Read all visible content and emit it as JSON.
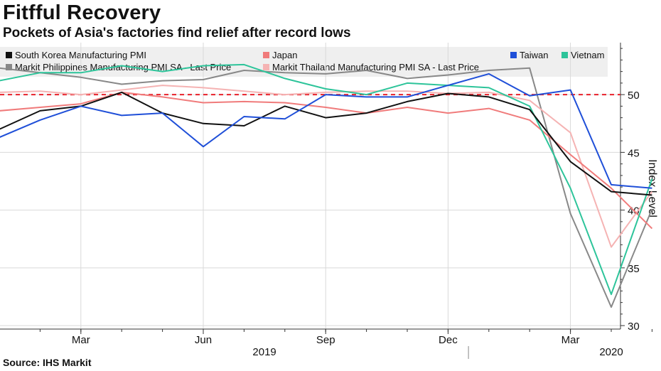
{
  "header": {
    "title": "Fitfful Recovery",
    "subtitle": "Pockets of Asia's factories find relief after record lows"
  },
  "source": "Source: IHS Markit",
  "legend": [
    {
      "label": "South Korea Manufacturing PMI",
      "color": "#111111"
    },
    {
      "label": "Markit Philippines Manufacturing PMI SA - Last Price",
      "color": "#888888"
    },
    {
      "label": "Japan",
      "color": "#f07b7b"
    },
    {
      "label": "Markit Thailand Manufacturing PMI SA - Last Price",
      "color": "#f5b3b3"
    },
    {
      "label": "Taiwan",
      "color": "#1f4fd8"
    },
    {
      "label": "Vietnam",
      "color": "#2dc49a"
    }
  ],
  "chart_data": {
    "type": "line",
    "title": "Fitfful Recovery",
    "subtitle": "Pockets of Asia's factories find relief after record lows",
    "xlabel": "",
    "ylabel": "Index Level",
    "ylim": [
      29.7,
      54.5
    ],
    "yticks": [
      30,
      35,
      40,
      45,
      50
    ],
    "reference_line": {
      "value": 50,
      "color": "#e8202a",
      "style": "dashed"
    },
    "x": [
      "2019-01",
      "2019-02",
      "2019-03",
      "2019-04",
      "2019-05",
      "2019-06",
      "2019-07",
      "2019-08",
      "2019-09",
      "2019-10",
      "2019-11",
      "2019-12",
      "2020-01",
      "2020-02",
      "2020-03",
      "2020-04",
      "2020-05"
    ],
    "x_tick_labels": [
      {
        "label": "Mar",
        "index": 2
      },
      {
        "label": "Jun",
        "index": 5
      },
      {
        "label": "Sep",
        "index": 8
      },
      {
        "label": "Dec",
        "index": 11
      },
      {
        "label": "Mar",
        "index": 14
      }
    ],
    "year_labels": [
      {
        "label": "2019",
        "index": 6.5
      },
      {
        "label": "2020",
        "index": 15
      }
    ],
    "series": [
      {
        "name": "Markit Philippines Manufacturing PMI SA - Last Price",
        "color": "#888888",
        "values": [
          52.3,
          51.9,
          51.5,
          50.9,
          51.2,
          51.3,
          52.1,
          51.9,
          51.8,
          52.1,
          51.4,
          51.7,
          52.1,
          52.3,
          39.7,
          31.6,
          40.1
        ]
      },
      {
        "name": "Markit Thailand Manufacturing PMI SA - Last Price",
        "color": "#f5b3b3",
        "values": [
          50.2,
          50.3,
          50.0,
          50.4,
          50.8,
          50.6,
          50.3,
          50.0,
          50.2,
          50.3,
          50.3,
          50.1,
          50.2,
          49.5,
          46.7,
          36.8,
          41.6
        ]
      },
      {
        "name": "Japan",
        "color": "#f07b7b",
        "values": [
          48.6,
          48.9,
          49.2,
          50.2,
          49.8,
          49.3,
          49.4,
          49.3,
          48.9,
          48.4,
          48.9,
          48.4,
          48.8,
          47.8,
          44.8,
          41.9,
          38.4
        ]
      },
      {
        "name": "Vietnam",
        "color": "#2dc49a",
        "values": [
          51.2,
          51.9,
          51.9,
          52.5,
          52.0,
          52.5,
          52.6,
          51.4,
          50.5,
          50.0,
          51.0,
          50.8,
          50.6,
          49.0,
          41.9,
          32.7,
          42.7
        ]
      },
      {
        "name": "South Korea Manufacturing PMI",
        "color": "#111111",
        "values": [
          47.0,
          48.6,
          49.0,
          50.2,
          48.4,
          47.5,
          47.3,
          49.0,
          48.0,
          48.4,
          49.4,
          50.1,
          49.8,
          48.7,
          44.2,
          41.6,
          41.3
        ]
      },
      {
        "name": "Taiwan",
        "color": "#1f4fd8",
        "values": [
          46.3,
          47.8,
          49.0,
          48.2,
          48.4,
          45.5,
          48.1,
          47.9,
          50.0,
          49.8,
          49.8,
          50.8,
          51.8,
          49.9,
          50.4,
          42.2,
          41.9
        ]
      }
    ]
  }
}
